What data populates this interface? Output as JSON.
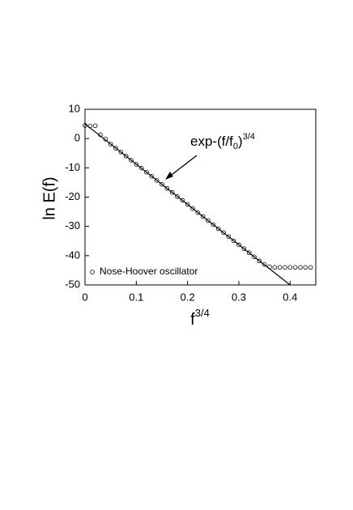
{
  "chart_data": {
    "type": "scatter",
    "xlabel": [
      "f",
      "3/4"
    ],
    "ylabel": "ln E(f)",
    "xlim": [
      0,
      0.45
    ],
    "xticks": [
      0,
      0.1,
      0.2,
      0.3,
      0.4
    ],
    "ylim": [
      -50,
      10
    ],
    "yticks": [
      -50,
      -40,
      -30,
      -20,
      -10,
      0,
      10
    ],
    "legend": "lower left",
    "series": [
      {
        "name": "Nose-Hoover oscillator",
        "color": "#000000",
        "x": [
          0,
          0.01,
          0.02,
          0.03,
          0.04,
          0.05,
          0.06,
          0.07,
          0.08,
          0.09,
          0.1,
          0.11,
          0.12,
          0.13,
          0.14,
          0.15,
          0.16,
          0.17,
          0.18,
          0.19,
          0.2,
          0.21,
          0.22,
          0.23,
          0.24,
          0.25,
          0.26,
          0.27,
          0.28,
          0.29,
          0.3,
          0.31,
          0.32,
          0.33,
          0.34,
          0.35,
          0.36,
          0.37,
          0.38,
          0.39,
          0.4,
          0.41,
          0.42,
          0.43,
          0.44
        ],
        "values": [
          4.5,
          4.3,
          4.4,
          1.3,
          -0.2,
          -1.9,
          -3.3,
          -4.6,
          -6.0,
          -7.4,
          -8.8,
          -10.1,
          -11.5,
          -12.9,
          -14.3,
          -15.6,
          -17.0,
          -18.4,
          -19.8,
          -21.1,
          -22.5,
          -23.9,
          -25.3,
          -26.6,
          -28.0,
          -29.4,
          -30.8,
          -32.1,
          -33.5,
          -34.9,
          -36.3,
          -37.6,
          -39.0,
          -40.4,
          -41.8,
          -43.0,
          -43.8,
          -44.0,
          -44.0,
          -44.0,
          -44.0,
          -44.0,
          -44.0,
          -44.0,
          -44.0
        ]
      }
    ],
    "fit": {
      "color": "#000000",
      "x": [
        0,
        0.4
      ],
      "values": [
        5,
        -50
      ]
    },
    "annotation": [
      "exp-(f/f",
      "0",
      ")",
      "3/4"
    ]
  }
}
